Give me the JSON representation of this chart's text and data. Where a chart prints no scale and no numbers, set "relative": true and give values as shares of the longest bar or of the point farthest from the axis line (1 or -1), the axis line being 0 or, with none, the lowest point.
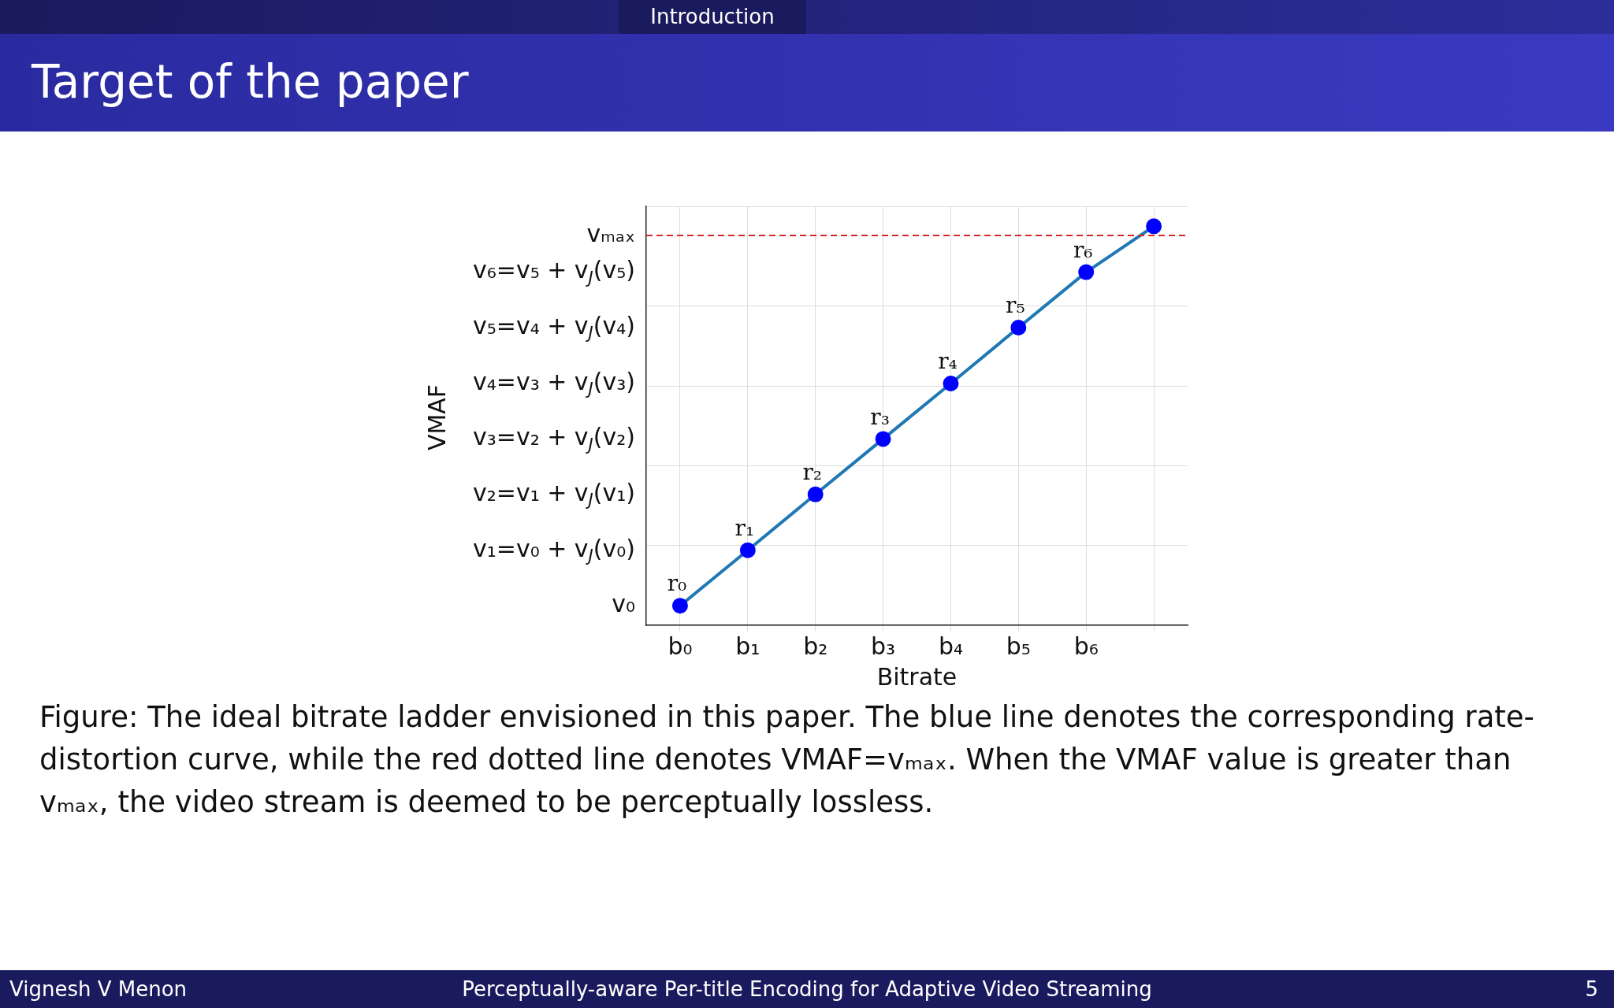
{
  "chart_data": {
    "type": "line",
    "title": "Target of the paper",
    "xlabel": "Bitrate",
    "relative": true,
    "categories": [
      "b₀",
      "b₁",
      "b₂",
      "b₃",
      "b₄",
      "b₅",
      "b₆",
      null
    ],
    "series": [
      {
        "color": "#1f77b4",
        "values": [
          0.049,
          0.188,
          0.328,
          0.467,
          0.606,
          0.746,
          0.885,
          1
        ]
      }
    ],
    "marker": "circle",
    "grid": true,
    "legend": false,
    "ref_lines": [
      {
        "axis": "y",
        "value": 0.977,
        "label": "vₘₐₓ",
        "color": "#d62728",
        "line_style": "dashed"
      }
    ],
    "annotations": [
      "Introduction",
      "Figure: The ideal bitrate ladder envisioned in this paper. The blue line denotes the corresponding rate-distortion curve, while the red dotted line denotes VMAF=vₘₐₓ. When the VMAF value is greater than vₘₐₓ, the video stream is deemed to be perceptually lossless.",
      "Vignesh V Menon",
      "Perceptually-aware Per-title Encoding for Adaptive Video Streaming",
      "5",
      "VMAF",
      "v₀",
      "v₁=v₀ + v$_{J}$(v₀)",
      "v₂=v₁ + v$_{J}$(v₁)",
      "v₃=v₂ + v$_{J}$(v₂)",
      "v₄=v₃ + v$_{J}$(v₃)",
      "v₅=v₄ + v$_{J}$(v₄)",
      "v₆=v₅ + v$_{J}$(v₅)",
      {
        "text": "r₀",
        "x": "b₀",
        "y": 0.049
      },
      {
        "text": "r₁",
        "x": "b₁",
        "y": 0.188
      },
      {
        "text": "r₂",
        "x": "b₂",
        "y": 0.328
      },
      {
        "text": "r₃",
        "x": "b₃",
        "y": 0.467
      },
      {
        "text": "r₄",
        "x": "b₄",
        "y": 0.606
      },
      {
        "text": "r₅",
        "x": "b₅",
        "y": 0.746
      },
      {
        "text": "r₆",
        "x": "b₆",
        "y": 0.885
      }
    ]
  }
}
